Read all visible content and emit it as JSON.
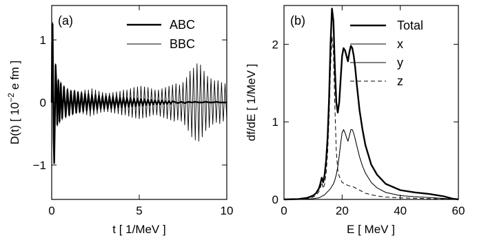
{
  "figure": {
    "panels": [
      "(a)",
      "(b)"
    ]
  },
  "chart_data": [
    {
      "type": "line",
      "panel_label": "(a)",
      "xlabel": "t [ 1/MeV ]",
      "ylabel_main": "D(t) [ 10",
      "ylabel_sup": "−2",
      "ylabel_tail": " e fm ]",
      "xlim": [
        0,
        10
      ],
      "ylim": [
        -1.55,
        1.55
      ],
      "xticks": [
        0,
        5,
        10
      ],
      "yticks": [
        -1,
        0,
        1
      ],
      "xtick_labels": [
        "0",
        "5",
        "10"
      ],
      "ytick_labels": [
        "−1",
        "0",
        "1"
      ],
      "legend": "top-right",
      "series": [
        {
          "name": "ABC",
          "style": "thick",
          "x": [
            0.0,
            0.02,
            0.05,
            0.08,
            0.11,
            0.14,
            0.18,
            0.22,
            0.27,
            0.32,
            0.38,
            0.45,
            0.52,
            0.6,
            0.7,
            0.8,
            0.9,
            1.0,
            1.1,
            1.2,
            1.3,
            1.4,
            1.5,
            1.6,
            1.7,
            1.8,
            1.9,
            2.0,
            2.1,
            2.2,
            2.3,
            2.4,
            2.5,
            2.6,
            2.7,
            2.8,
            2.9,
            3.0,
            3.1,
            3.2,
            3.3,
            3.4,
            3.5,
            3.6,
            3.7,
            3.8,
            3.9,
            4.0,
            4.1,
            4.2,
            4.3,
            4.4,
            4.5,
            4.6,
            4.7,
            4.8,
            4.9,
            5.0,
            5.1,
            5.2,
            5.3,
            5.4,
            5.5,
            5.6,
            5.7,
            5.8,
            5.9,
            6.0,
            6.1,
            6.2,
            6.3,
            6.4,
            6.5,
            6.6,
            6.7,
            6.8,
            6.9,
            7.0,
            7.2,
            7.4,
            7.6,
            7.8,
            8.0,
            8.2,
            8.4,
            8.6,
            8.8,
            9.0,
            9.2,
            9.4,
            9.6,
            9.8,
            10.0
          ],
          "y": [
            0.0,
            0.9,
            1.25,
            0.4,
            -0.6,
            -0.97,
            -0.3,
            0.6,
            0.25,
            -0.35,
            0.35,
            -0.3,
            0.3,
            -0.25,
            0.25,
            -0.22,
            0.2,
            -0.2,
            0.18,
            -0.18,
            0.18,
            -0.16,
            0.16,
            -0.15,
            0.15,
            -0.14,
            0.14,
            -0.13,
            0.13,
            -0.12,
            0.12,
            -0.12,
            0.12,
            -0.11,
            0.11,
            -0.1,
            0.1,
            -0.1,
            0.1,
            -0.1,
            0.1,
            -0.09,
            0.09,
            -0.09,
            0.09,
            -0.08,
            0.08,
            -0.08,
            0.08,
            -0.07,
            0.07,
            -0.07,
            0.07,
            -0.06,
            0.06,
            -0.06,
            0.06,
            -0.05,
            0.05,
            -0.05,
            0.05,
            -0.04,
            0.04,
            -0.04,
            0.04,
            -0.03,
            0.03,
            -0.03,
            0.03,
            -0.03,
            0.03,
            -0.02,
            0.02,
            -0.02,
            0.02,
            -0.02,
            0.02,
            0.01,
            -0.01,
            0.01,
            -0.01,
            0.01,
            0.0,
            0.01,
            0.0,
            0.0,
            0.01,
            0.0,
            0.0,
            0.01,
            0.0,
            0.0,
            0.0
          ]
        },
        {
          "name": "BBC",
          "style": "thin",
          "x": [
            0.0,
            0.02,
            0.05,
            0.08,
            0.11,
            0.14,
            0.18,
            0.22,
            0.27,
            0.32,
            0.38,
            0.45,
            0.52,
            0.6,
            0.7,
            0.8,
            0.9,
            1.0,
            1.1,
            1.2,
            1.3,
            1.4,
            1.5,
            1.6,
            1.7,
            1.8,
            1.9,
            2.0,
            2.1,
            2.2,
            2.3,
            2.4,
            2.5,
            2.6,
            2.7,
            2.8,
            2.9,
            3.0,
            3.1,
            3.2,
            3.3,
            3.4,
            3.5,
            3.6,
            3.7,
            3.8,
            3.9,
            4.0,
            4.1,
            4.2,
            4.3,
            4.4,
            4.5,
            4.6,
            4.7,
            4.8,
            4.9,
            5.0,
            5.1,
            5.2,
            5.3,
            5.4,
            5.5,
            5.6,
            5.7,
            5.8,
            5.9,
            6.0,
            6.1,
            6.2,
            6.3,
            6.4,
            6.5,
            6.6,
            6.7,
            6.8,
            6.9,
            7.0,
            7.1,
            7.2,
            7.3,
            7.4,
            7.5,
            7.6,
            7.7,
            7.8,
            7.9,
            8.0,
            8.1,
            8.2,
            8.3,
            8.4,
            8.5,
            8.6,
            8.7,
            8.8,
            8.9,
            9.0,
            9.1,
            9.2,
            9.3,
            9.4,
            9.5,
            9.6,
            9.7,
            9.8,
            9.9,
            10.0
          ],
          "y": [
            0.0,
            0.9,
            1.28,
            0.4,
            -0.62,
            -0.98,
            -0.3,
            0.62,
            0.25,
            -0.38,
            0.38,
            -0.33,
            0.33,
            -0.28,
            0.27,
            -0.25,
            0.23,
            -0.22,
            0.2,
            -0.2,
            0.2,
            -0.18,
            0.18,
            -0.17,
            0.18,
            -0.18,
            0.2,
            -0.2,
            0.2,
            -0.22,
            0.22,
            -0.2,
            0.2,
            -0.18,
            0.18,
            -0.16,
            0.16,
            -0.15,
            0.15,
            -0.15,
            0.15,
            -0.16,
            0.16,
            -0.17,
            0.17,
            -0.18,
            0.18,
            -0.2,
            0.2,
            -0.2,
            0.2,
            -0.22,
            0.22,
            -0.24,
            0.24,
            -0.25,
            0.25,
            -0.26,
            0.26,
            -0.25,
            0.25,
            -0.24,
            0.24,
            -0.22,
            0.22,
            -0.2,
            0.2,
            -0.2,
            0.2,
            -0.22,
            0.22,
            -0.24,
            0.24,
            -0.26,
            0.26,
            -0.28,
            0.28,
            -0.3,
            0.3,
            -0.28,
            0.28,
            -0.3,
            0.32,
            -0.36,
            0.4,
            -0.45,
            0.5,
            -0.55,
            0.55,
            -0.6,
            0.62,
            -0.62,
            0.6,
            -0.55,
            0.5,
            -0.45,
            0.42,
            -0.4,
            0.38,
            -0.35,
            0.35,
            -0.32,
            0.35,
            -0.34,
            0.32,
            -0.3,
            0.3,
            -0.28
          ]
        }
      ]
    },
    {
      "type": "line",
      "panel_label": "(b)",
      "xlabel": "E [ MeV ]",
      "ylabel": "df/dE [ 1/MeV ]",
      "xlim": [
        0,
        60
      ],
      "ylim": [
        0,
        2.5
      ],
      "xticks": [
        0,
        20,
        40,
        60
      ],
      "yticks": [
        0,
        1,
        2
      ],
      "xtick_labels": [
        "0",
        "20",
        "40",
        "60"
      ],
      "ytick_labels": [
        "0",
        "1",
        "2"
      ],
      "legend": "top-right",
      "series": [
        {
          "name": "Total",
          "style": "thick",
          "x": [
            0,
            5,
            8,
            10,
            11,
            12,
            12.5,
            13,
            13.5,
            14,
            14.5,
            15,
            15.5,
            16,
            16.5,
            17,
            17.5,
            18,
            18.5,
            19,
            19.5,
            20,
            20.5,
            21,
            21.5,
            22,
            22.5,
            23,
            23.5,
            24,
            24.5,
            25,
            26,
            27,
            28,
            30,
            32,
            35,
            40,
            45,
            50,
            55,
            58,
            60
          ],
          "y": [
            0.0,
            0.005,
            0.02,
            0.05,
            0.08,
            0.14,
            0.2,
            0.28,
            0.22,
            0.32,
            0.5,
            0.8,
            1.3,
            2.0,
            2.46,
            2.3,
            1.7,
            1.25,
            1.12,
            1.25,
            1.55,
            1.85,
            1.95,
            1.92,
            1.85,
            1.78,
            1.9,
            1.98,
            1.95,
            1.85,
            1.7,
            1.5,
            1.15,
            0.9,
            0.7,
            0.45,
            0.32,
            0.2,
            0.12,
            0.09,
            0.07,
            0.04,
            0.01,
            0.0
          ]
        },
        {
          "name": "x",
          "style": "thin",
          "x": [
            0,
            5,
            8,
            10,
            11,
            12,
            12.5,
            13,
            13.5,
            14,
            14.5,
            15,
            15.5,
            16,
            16.5,
            17,
            17.5,
            18,
            18.5,
            19,
            19.5,
            20,
            20.5,
            21,
            21.5,
            22,
            22.5,
            23,
            23.5,
            24,
            24.5,
            25,
            26,
            27,
            28,
            30,
            32,
            35,
            40,
            45,
            50,
            55,
            58,
            60
          ],
          "y": [
            0.0,
            0.002,
            0.005,
            0.01,
            0.015,
            0.02,
            0.03,
            0.04,
            0.05,
            0.06,
            0.08,
            0.1,
            0.12,
            0.14,
            0.17,
            0.2,
            0.25,
            0.32,
            0.42,
            0.56,
            0.72,
            0.86,
            0.9,
            0.86,
            0.8,
            0.75,
            0.82,
            0.9,
            0.9,
            0.85,
            0.78,
            0.7,
            0.55,
            0.43,
            0.34,
            0.22,
            0.15,
            0.09,
            0.05,
            0.035,
            0.025,
            0.012,
            0.004,
            0.0
          ]
        },
        {
          "name": "y",
          "style": "thin",
          "x": [
            0,
            5,
            8,
            10,
            11,
            12,
            12.5,
            13,
            13.5,
            14,
            14.5,
            15,
            15.5,
            16,
            16.5,
            17,
            17.5,
            18,
            18.5,
            19,
            19.5,
            20,
            20.5,
            21,
            21.5,
            22,
            22.5,
            23,
            23.5,
            24,
            24.5,
            25,
            26,
            27,
            28,
            30,
            32,
            35,
            40,
            45,
            50,
            55,
            58,
            60
          ],
          "y": [
            0.0,
            0.002,
            0.005,
            0.01,
            0.015,
            0.02,
            0.03,
            0.04,
            0.05,
            0.06,
            0.08,
            0.1,
            0.12,
            0.14,
            0.17,
            0.2,
            0.25,
            0.32,
            0.42,
            0.56,
            0.72,
            0.86,
            0.9,
            0.86,
            0.8,
            0.75,
            0.82,
            0.9,
            0.9,
            0.85,
            0.78,
            0.7,
            0.55,
            0.43,
            0.34,
            0.22,
            0.15,
            0.09,
            0.05,
            0.035,
            0.025,
            0.012,
            0.004,
            0.0
          ]
        },
        {
          "name": "z",
          "style": "dashed",
          "x": [
            0,
            5,
            8,
            10,
            11,
            12,
            12.5,
            13,
            13.5,
            14,
            14.5,
            15,
            15.5,
            16,
            16.5,
            17,
            17.5,
            18,
            18.5,
            19,
            19.5,
            20,
            21,
            22,
            23,
            24,
            25,
            26,
            27,
            28,
            30,
            32,
            35,
            40,
            45,
            50,
            55,
            58,
            60
          ],
          "y": [
            0.0,
            0.003,
            0.01,
            0.03,
            0.05,
            0.1,
            0.15,
            0.22,
            0.14,
            0.2,
            0.34,
            0.6,
            1.05,
            1.7,
            2.1,
            1.9,
            1.2,
            0.62,
            0.38,
            0.3,
            0.26,
            0.22,
            0.2,
            0.18,
            0.17,
            0.16,
            0.14,
            0.12,
            0.1,
            0.08,
            0.06,
            0.045,
            0.03,
            0.02,
            0.015,
            0.01,
            0.005,
            0.002,
            0.0
          ]
        }
      ]
    }
  ]
}
